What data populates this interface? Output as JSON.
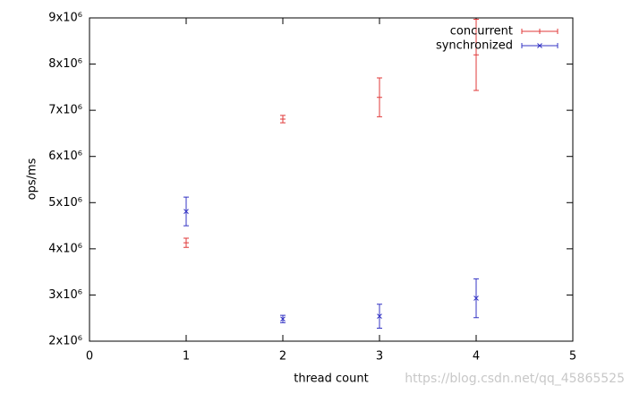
{
  "chart_data": {
    "type": "errorbar",
    "x_label": "thread count",
    "y_label": "ops/ms",
    "x": [
      1,
      2,
      3,
      4
    ],
    "series": [
      {
        "name": "concurrent",
        "color": "#e03a3a",
        "marker": "+",
        "values": [
          4130000,
          6810000,
          7280000,
          8200000
        ],
        "errors": [
          100000,
          80000,
          420000,
          770000
        ]
      },
      {
        "name": "synchronized",
        "color": "#3434c4",
        "marker": "x",
        "values": [
          4810000,
          2480000,
          2540000,
          2930000
        ],
        "errors": [
          310000,
          80000,
          260000,
          420000
        ]
      }
    ],
    "xlim": [
      0,
      5
    ],
    "xticks": [
      0,
      1,
      2,
      3,
      4,
      5
    ],
    "ylim": [
      2000000,
      9000000
    ],
    "yticks": [
      {
        "value": 2000000,
        "label": "2x10⁶"
      },
      {
        "value": 3000000,
        "label": "3x10⁶"
      },
      {
        "value": 4000000,
        "label": "4x10⁶"
      },
      {
        "value": 5000000,
        "label": "5x10⁶"
      },
      {
        "value": 6000000,
        "label": "6x10⁶"
      },
      {
        "value": 7000000,
        "label": "7x10⁶"
      },
      {
        "value": 8000000,
        "label": "8x10⁶"
      },
      {
        "value": 9000000,
        "label": "9x10⁶"
      }
    ],
    "legend": "top-right",
    "grid": false,
    "watermark": "https://blog.csdn.net/qq_45865525"
  }
}
